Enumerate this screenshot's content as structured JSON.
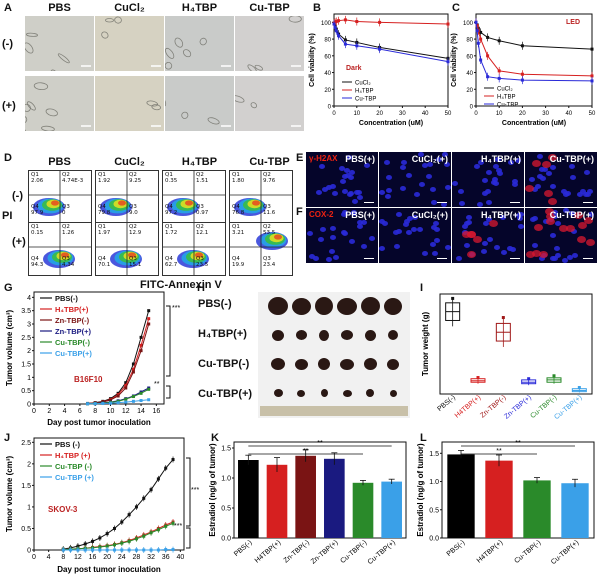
{
  "panels": {
    "A": {
      "label": "A",
      "cols": [
        "PBS",
        "CuCl₂",
        "H₄TBP",
        "Cu-TBP"
      ],
      "rows": [
        "(-)",
        "(+)"
      ]
    },
    "B": {
      "label": "B",
      "condition": "Dark"
    },
    "C": {
      "label": "C",
      "condition": "LED"
    },
    "D": {
      "label": "D",
      "cols": [
        "PBS",
        "CuCl₂",
        "H₄TBP",
        "Cu-TBP"
      ],
      "rows": [
        "(-)",
        "(+)"
      ],
      "ylabel": "PI",
      "xlabel": "FITC-Annexin V",
      "quadrants": [
        [
          [
            "Q1\n2.06",
            "Q2\n4.74E-3",
            "Q4\n97.9",
            "Q3\n0"
          ],
          [
            "Q1\n1.92",
            "Q2\n9.25",
            "Q4\n79.8",
            "Q3\n9.0"
          ],
          [
            "Q1\n0.35",
            "Q2\n1.51",
            "Q4\n97.2",
            "Q3\n0.97"
          ],
          [
            "Q1\n1.80",
            "Q2\n9.76",
            "Q4\n76.8",
            "Q3\n11.6"
          ]
        ],
        [
          [
            "Q1\n0.15",
            "Q2\n1.26",
            "Q4\n94.3",
            "Q3\n4.34"
          ],
          [
            "Q1\n1.97",
            "Q2\n12.9",
            "Q4\n70.1",
            "Q3\n15.1"
          ],
          [
            "Q1\n1.72",
            "Q2\n12.1",
            "Q4\n62.7",
            "Q3\n23.5"
          ],
          [
            "Q1\n3.21",
            "Q2\n53.5",
            "Q4\n19.9",
            "Q3\n23.4"
          ]
        ]
      ]
    },
    "E": {
      "label": "E",
      "marker": "γ-H2AX",
      "titles": [
        "PBS(+)",
        "CuCl₂(+)",
        "H₄TBP(+)",
        "Cu-TBP(+)"
      ]
    },
    "F": {
      "label": "F",
      "marker": "COX-2",
      "titles": [
        "PBS(+)",
        "CuCl₂(+)",
        "H₄TBP(+)",
        "Cu-TBP(+)"
      ]
    },
    "G": {
      "label": "G",
      "model": "B16F10",
      "sig1": "***",
      "sig2": "**"
    },
    "H": {
      "label": "H",
      "rows": [
        "PBS(-)",
        "H₄TBP(+)",
        "Cu-TBP(-)",
        "Cu-TBP(+)"
      ]
    },
    "I": {
      "label": "I"
    },
    "J": {
      "label": "J",
      "model": "SKOV-3",
      "sig1": "***",
      "sig2": "***"
    },
    "K": {
      "label": "K",
      "sig": "**"
    },
    "L": {
      "label": "L",
      "sig": "**"
    }
  },
  "chart_data": [
    {
      "id": "B",
      "type": "line",
      "title": "",
      "xlabel": "Concentration (uM)",
      "ylabel": "Cell viability (%)",
      "xlim": [
        0,
        50
      ],
      "ylim": [
        0,
        110
      ],
      "xticks": [
        0,
        10,
        20,
        30,
        40,
        50
      ],
      "yticks": [
        0,
        20,
        40,
        60,
        80,
        100
      ],
      "series": [
        {
          "name": "CuCl₂",
          "color": "#111111",
          "x": [
            0,
            0.5,
            1,
            2,
            5,
            10,
            20,
            50
          ],
          "y": [
            99,
            96,
            92,
            86,
            79,
            76,
            70,
            57
          ]
        },
        {
          "name": "H₄TBP",
          "color": "#d62020",
          "x": [
            0,
            0.5,
            1,
            2,
            5,
            10,
            20,
            50
          ],
          "y": [
            99,
            100,
            101,
            102,
            103,
            101,
            100,
            98
          ]
        },
        {
          "name": "Cu-TBP",
          "color": "#2a2ad8",
          "x": [
            0,
            0.5,
            1,
            2,
            5,
            10,
            20,
            50
          ],
          "y": [
            98,
            94,
            90,
            84,
            74,
            72,
            68,
            53
          ]
        }
      ]
    },
    {
      "id": "C",
      "type": "line",
      "title": "",
      "xlabel": "Concentration (uM)",
      "ylabel": "Cell viability (%)",
      "xlim": [
        0,
        50
      ],
      "ylim": [
        0,
        110
      ],
      "xticks": [
        0,
        10,
        20,
        30,
        40,
        50
      ],
      "yticks": [
        0,
        20,
        40,
        60,
        80,
        100
      ],
      "series": [
        {
          "name": "CuCl₂",
          "color": "#111111",
          "x": [
            0,
            0.5,
            1,
            2,
            5,
            10,
            20,
            50
          ],
          "y": [
            100,
            97,
            93,
            88,
            82,
            78,
            72,
            68
          ]
        },
        {
          "name": "H₄TBP",
          "color": "#d62020",
          "x": [
            0,
            0.5,
            1,
            2,
            5,
            10,
            20,
            50
          ],
          "y": [
            100,
            96,
            90,
            80,
            60,
            42,
            38,
            36
          ]
        },
        {
          "name": "Cu-TBP",
          "color": "#2a2ad8",
          "x": [
            0,
            0.5,
            1,
            2,
            5,
            10,
            20,
            50
          ],
          "y": [
            100,
            90,
            75,
            55,
            35,
            33,
            31,
            30
          ]
        }
      ]
    },
    {
      "id": "G",
      "type": "line",
      "xlabel": "Day post tumor inoculation",
      "ylabel": "Tumor volume (cm³)",
      "xlim": [
        0,
        17
      ],
      "ylim": [
        0,
        4.2
      ],
      "xticks": [
        0,
        2,
        4,
        6,
        8,
        10,
        12,
        14,
        16
      ],
      "yticks": [
        0,
        0.5,
        1.0,
        1.5,
        2.0,
        2.5,
        3.0,
        3.5,
        4.0
      ],
      "series": [
        {
          "name": "PBS(-)",
          "color": "#111111",
          "x": [
            7,
            8,
            9,
            10,
            11,
            12,
            13,
            14,
            15
          ],
          "y": [
            0.02,
            0.05,
            0.1,
            0.2,
            0.4,
            0.8,
            1.5,
            2.5,
            3.5
          ]
        },
        {
          "name": "H₄TBP(+)",
          "color": "#d62020",
          "x": [
            7,
            8,
            9,
            10,
            11,
            12,
            13,
            14,
            15
          ],
          "y": [
            0.02,
            0.04,
            0.08,
            0.17,
            0.35,
            0.7,
            1.3,
            2.2,
            3.2
          ]
        },
        {
          "name": "Zn-TBP(-)",
          "color": "#7a1414",
          "x": [
            7,
            8,
            9,
            10,
            11,
            12,
            13,
            14,
            15
          ],
          "y": [
            0.02,
            0.04,
            0.07,
            0.15,
            0.3,
            0.6,
            1.2,
            2.0,
            3.0
          ]
        },
        {
          "name": "Zn-TBP(+)",
          "color": "#1a1a80",
          "x": [
            7,
            8,
            9,
            10,
            11,
            12,
            13,
            14,
            15
          ],
          "y": [
            0.01,
            0.02,
            0.04,
            0.07,
            0.12,
            0.2,
            0.3,
            0.45,
            0.6
          ]
        },
        {
          "name": "Cu-TBP(-)",
          "color": "#2a8a2a",
          "x": [
            7,
            8,
            9,
            10,
            11,
            12,
            13,
            14,
            15
          ],
          "y": [
            0.01,
            0.02,
            0.03,
            0.06,
            0.1,
            0.18,
            0.28,
            0.4,
            0.55
          ]
        },
        {
          "name": "Cu-TBP(+)",
          "color": "#3aa0e8",
          "x": [
            7,
            8,
            9,
            10,
            11,
            12,
            13,
            14,
            15
          ],
          "y": [
            0.01,
            0.01,
            0.02,
            0.03,
            0.05,
            0.07,
            0.1,
            0.13,
            0.16
          ]
        }
      ]
    },
    {
      "id": "I",
      "type": "box",
      "ylabel": "Tumor weight (g)",
      "ylim": [
        0,
        3.4
      ],
      "categories": [
        "PBS(-)",
        "H4TBP(+)",
        "Zn-TBP(-)",
        "Zn-TBP(+)",
        "Cu-TBP(-)",
        "Cu-TBP(+)"
      ],
      "colors": [
        "#111111",
        "#d62020",
        "#a01818",
        "#2a2ad8",
        "#2a8a2a",
        "#3aa0e8"
      ],
      "boxes": [
        [
          2.3,
          2.5,
          2.8,
          3.1,
          3.25
        ],
        [
          0.35,
          0.4,
          0.45,
          0.52,
          0.56
        ],
        [
          1.6,
          1.8,
          2.1,
          2.4,
          2.6
        ],
        [
          0.3,
          0.35,
          0.4,
          0.48,
          0.52
        ],
        [
          0.35,
          0.4,
          0.48,
          0.55,
          0.62
        ],
        [
          0.05,
          0.08,
          0.12,
          0.18,
          0.22
        ]
      ]
    },
    {
      "id": "J",
      "type": "line",
      "xlabel": "Day post tumor inoculation",
      "ylabel": "Tumor volume (cm³)",
      "xlim": [
        0,
        41
      ],
      "ylim": [
        0,
        2.6
      ],
      "xticks": [
        0,
        4,
        8,
        12,
        16,
        20,
        24,
        28,
        32,
        36,
        40
      ],
      "yticks": [
        0,
        0.5,
        1.0,
        1.5,
        2.0,
        2.5
      ],
      "series": [
        {
          "name": "PBS (-)",
          "color": "#111111",
          "x": [
            8,
            10,
            12,
            14,
            16,
            18,
            20,
            22,
            24,
            26,
            28,
            30,
            32,
            34,
            36,
            38
          ],
          "y": [
            0.02,
            0.05,
            0.09,
            0.14,
            0.2,
            0.28,
            0.38,
            0.5,
            0.65,
            0.82,
            1.0,
            1.2,
            1.4,
            1.65,
            1.9,
            2.1
          ]
        },
        {
          "name": "H₄TBP (+)",
          "color": "#d62020",
          "x": [
            8,
            10,
            12,
            14,
            16,
            18,
            20,
            22,
            24,
            26,
            28,
            30,
            32,
            34,
            36,
            38
          ],
          "y": [
            0.01,
            0.02,
            0.03,
            0.04,
            0.06,
            0.08,
            0.1,
            0.13,
            0.17,
            0.22,
            0.28,
            0.35,
            0.42,
            0.5,
            0.58,
            0.65
          ]
        },
        {
          "name": "Cu-TBP (-)",
          "color": "#2a8a2a",
          "x": [
            8,
            10,
            12,
            14,
            16,
            18,
            20,
            22,
            24,
            26,
            28,
            30,
            32,
            34,
            36,
            38
          ],
          "y": [
            0.01,
            0.02,
            0.03,
            0.04,
            0.05,
            0.07,
            0.09,
            0.12,
            0.16,
            0.2,
            0.26,
            0.32,
            0.4,
            0.47,
            0.55,
            0.62
          ]
        },
        {
          "name": "Cu-TBP (+)",
          "color": "#3aa0e8",
          "x": [
            8,
            10,
            12,
            14,
            16,
            18,
            20,
            22,
            24,
            26,
            28,
            30,
            32,
            34,
            36,
            38
          ],
          "y": [
            0,
            0,
            0,
            0,
            0,
            0,
            0,
            0,
            0,
            0,
            0,
            0,
            0,
            0,
            0.01,
            0.01
          ]
        }
      ]
    },
    {
      "id": "K",
      "type": "bar",
      "ylabel": "Estradiol (ng/g of tumor)",
      "ylim": [
        0,
        1.6
      ],
      "yticks": [
        0,
        0.5,
        1.0,
        1.5
      ],
      "categories": [
        "PBS(-)",
        "H4TBP(+)",
        "Zn-TBP(-)",
        "Zn-TBP(+)",
        "Cu-TBP(-)",
        "Cu-TBP(+)"
      ],
      "values": [
        1.3,
        1.22,
        1.37,
        1.32,
        0.92,
        0.94
      ],
      "errors": [
        0.08,
        0.12,
        0.1,
        0.1,
        0.04,
        0.04
      ],
      "colors": [
        "#000000",
        "#d62020",
        "#7a1414",
        "#1a1a80",
        "#2a8a2a",
        "#3aa0e8"
      ]
    },
    {
      "id": "L",
      "type": "bar",
      "ylabel": "Estradiol (ng/g of tumor)",
      "ylim": [
        0,
        1.7
      ],
      "yticks": [
        0.0,
        0.5,
        1.0,
        1.5
      ],
      "categories": [
        "PBS(-)",
        "H4TBP(+)",
        "Cu-TBP(-)",
        "Cu-TBP(+)"
      ],
      "values": [
        1.48,
        1.37,
        1.02,
        0.97
      ],
      "errors": [
        0.07,
        0.1,
        0.05,
        0.07
      ],
      "colors": [
        "#000000",
        "#d62020",
        "#2a8a2a",
        "#3aa0e8"
      ]
    }
  ]
}
